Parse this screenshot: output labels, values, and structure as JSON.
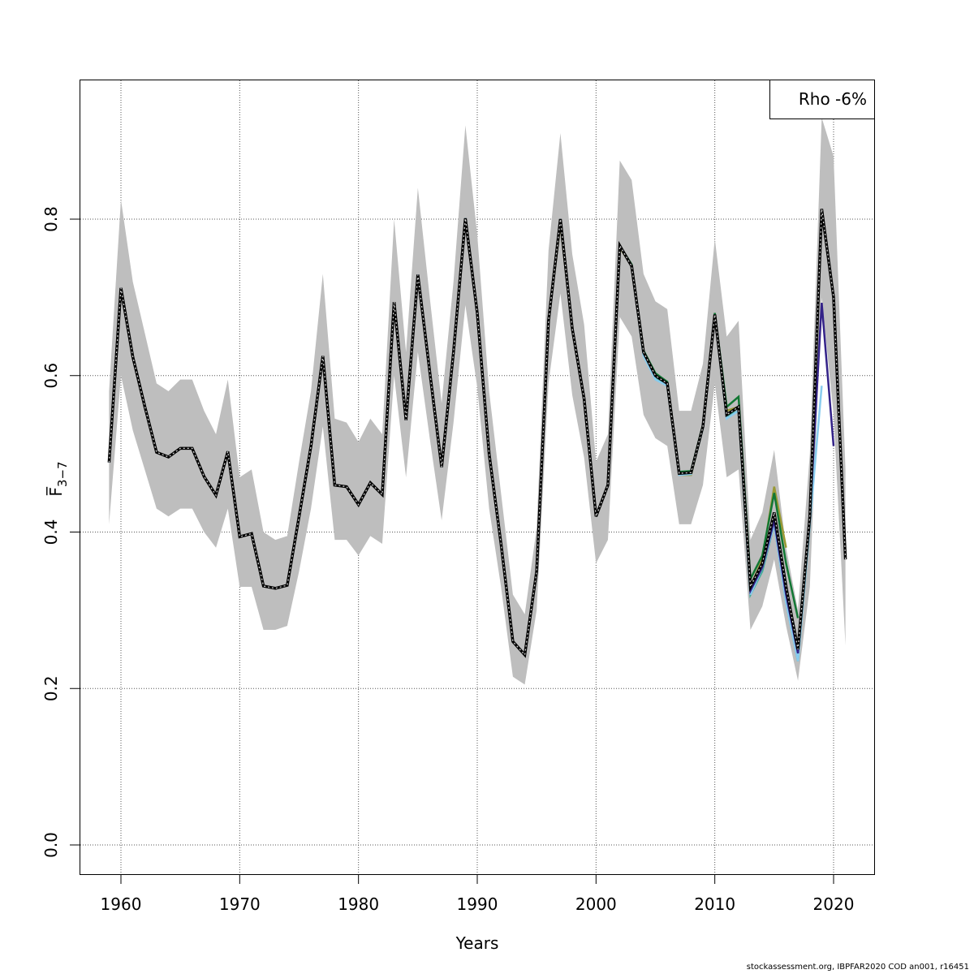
{
  "chart_data": {
    "type": "line",
    "title": "",
    "xlabel": "Years",
    "ylabel": "F̅",
    "ylabel_subscript": "3−7",
    "xlim": [
      1959,
      2021
    ],
    "ylim": [
      0.0,
      0.95
    ],
    "x_ticks": [
      "1960",
      "1970",
      "1980",
      "1990",
      "2000",
      "2010",
      "2020"
    ],
    "y_ticks": [
      "0.0",
      "0.2",
      "0.4",
      "0.6",
      "0.8"
    ],
    "grid": true,
    "legend": {
      "text": "Rho -6%",
      "placement": "top-right"
    },
    "years": [
      1959,
      1960,
      1961,
      1962,
      1963,
      1964,
      1965,
      1966,
      1967,
      1968,
      1969,
      1970,
      1971,
      1972,
      1973,
      1974,
      1975,
      1976,
      1977,
      1978,
      1979,
      1980,
      1981,
      1982,
      1983,
      1984,
      1985,
      1986,
      1987,
      1988,
      1989,
      1990,
      1991,
      1992,
      1993,
      1994,
      1995,
      1996,
      1997,
      1998,
      1999,
      2000,
      2001,
      2002,
      2003,
      2004,
      2005,
      2006,
      2007,
      2008,
      2009,
      2010,
      2011,
      2012,
      2013,
      2014,
      2015,
      2016,
      2017,
      2018,
      2019,
      2020,
      2021
    ],
    "confidence_band": {
      "color": "#bebebe",
      "lower": [
        0.41,
        0.6,
        0.53,
        0.48,
        0.43,
        0.42,
        0.43,
        0.43,
        0.4,
        0.38,
        0.43,
        0.33,
        0.33,
        0.275,
        0.275,
        0.28,
        0.35,
        0.43,
        0.535,
        0.39,
        0.39,
        0.37,
        0.395,
        0.385,
        0.6,
        0.47,
        0.63,
        0.52,
        0.415,
        0.54,
        0.69,
        0.585,
        0.43,
        0.33,
        0.215,
        0.205,
        0.3,
        0.59,
        0.705,
        0.575,
        0.495,
        0.36,
        0.39,
        0.675,
        0.65,
        0.55,
        0.52,
        0.51,
        0.41,
        0.41,
        0.46,
        0.59,
        0.47,
        0.48,
        0.275,
        0.305,
        0.365,
        0.28,
        0.21,
        0.33,
        0.7,
        0.55,
        0.255
      ],
      "upper": [
        0.58,
        0.825,
        0.72,
        0.655,
        0.59,
        0.58,
        0.595,
        0.595,
        0.555,
        0.525,
        0.595,
        0.47,
        0.48,
        0.4,
        0.39,
        0.395,
        0.49,
        0.58,
        0.73,
        0.545,
        0.54,
        0.515,
        0.545,
        0.525,
        0.8,
        0.63,
        0.84,
        0.7,
        0.565,
        0.72,
        0.92,
        0.78,
        0.58,
        0.45,
        0.32,
        0.295,
        0.405,
        0.76,
        0.91,
        0.755,
        0.665,
        0.49,
        0.525,
        0.875,
        0.85,
        0.73,
        0.695,
        0.685,
        0.555,
        0.555,
        0.615,
        0.775,
        0.65,
        0.67,
        0.39,
        0.425,
        0.505,
        0.38,
        0.3,
        0.5,
        0.93,
        0.88,
        0.48
      ]
    },
    "series": [
      {
        "color": "#000000",
        "style": "dotted-black",
        "values": [
          0.489,
          0.712,
          0.624,
          0.561,
          0.502,
          0.496,
          0.507,
          0.507,
          0.471,
          0.447,
          0.503,
          0.394,
          0.398,
          0.331,
          0.328,
          0.332,
          0.42,
          0.51,
          0.625,
          0.46,
          0.458,
          0.435,
          0.463,
          0.448,
          0.694,
          0.543,
          0.729,
          0.605,
          0.483,
          0.63,
          0.801,
          0.68,
          0.5,
          0.385,
          0.26,
          0.243,
          0.35,
          0.67,
          0.8,
          0.66,
          0.57,
          0.42,
          0.46,
          0.766,
          0.74,
          0.63,
          0.6,
          0.59,
          0.475,
          0.476,
          0.535,
          0.678,
          0.55,
          0.56,
          0.33,
          0.36,
          0.425,
          0.33,
          0.25,
          0.42,
          0.813,
          0.7,
          0.365
        ]
      },
      {
        "color": "#332288",
        "style": "solid",
        "values": [
          0.489,
          0.712,
          0.624,
          0.561,
          0.502,
          0.496,
          0.507,
          0.507,
          0.471,
          0.447,
          0.503,
          0.394,
          0.398,
          0.331,
          0.328,
          0.332,
          0.42,
          0.51,
          0.625,
          0.46,
          0.458,
          0.435,
          0.463,
          0.448,
          0.694,
          0.543,
          0.729,
          0.605,
          0.483,
          0.63,
          0.801,
          0.68,
          0.5,
          0.385,
          0.26,
          0.243,
          0.35,
          0.67,
          0.8,
          0.66,
          0.57,
          0.42,
          0.46,
          0.766,
          0.74,
          0.63,
          0.6,
          0.59,
          0.475,
          0.476,
          0.535,
          0.678,
          0.55,
          0.56,
          0.325,
          0.355,
          0.415,
          0.32,
          0.245,
          0.42,
          0.693,
          0.51
        ]
      },
      {
        "color": "#88ccee",
        "style": "solid",
        "values": [
          0.489,
          0.712,
          0.624,
          0.561,
          0.502,
          0.496,
          0.507,
          0.507,
          0.471,
          0.447,
          0.503,
          0.394,
          0.398,
          0.331,
          0.328,
          0.332,
          0.42,
          0.51,
          0.625,
          0.46,
          0.458,
          0.435,
          0.463,
          0.448,
          0.694,
          0.543,
          0.729,
          0.605,
          0.483,
          0.63,
          0.801,
          0.68,
          0.5,
          0.385,
          0.26,
          0.243,
          0.35,
          0.67,
          0.8,
          0.66,
          0.57,
          0.42,
          0.46,
          0.766,
          0.74,
          0.625,
          0.595,
          0.587,
          0.473,
          0.474,
          0.533,
          0.676,
          0.545,
          0.555,
          0.32,
          0.355,
          0.41,
          0.31,
          0.235,
          0.41,
          0.587
        ]
      },
      {
        "color": "#44aa99",
        "style": "solid",
        "values": [
          0.489,
          0.712,
          0.624,
          0.561,
          0.502,
          0.496,
          0.507,
          0.507,
          0.471,
          0.447,
          0.503,
          0.394,
          0.398,
          0.331,
          0.328,
          0.332,
          0.42,
          0.51,
          0.625,
          0.46,
          0.458,
          0.435,
          0.463,
          0.448,
          0.694,
          0.543,
          0.729,
          0.605,
          0.483,
          0.63,
          0.801,
          0.68,
          0.5,
          0.385,
          0.26,
          0.243,
          0.35,
          0.67,
          0.8,
          0.66,
          0.57,
          0.42,
          0.46,
          0.766,
          0.74,
          0.628,
          0.598,
          0.588,
          0.474,
          0.475,
          0.534,
          0.677,
          0.548,
          0.555,
          0.32,
          0.35,
          0.41,
          0.31,
          0.235,
          0.41
        ]
      },
      {
        "color": "#117733",
        "style": "solid",
        "values": [
          0.489,
          0.712,
          0.624,
          0.561,
          0.502,
          0.496,
          0.507,
          0.507,
          0.471,
          0.447,
          0.503,
          0.394,
          0.398,
          0.331,
          0.328,
          0.332,
          0.42,
          0.51,
          0.625,
          0.46,
          0.458,
          0.435,
          0.463,
          0.448,
          0.694,
          0.543,
          0.729,
          0.605,
          0.483,
          0.63,
          0.801,
          0.68,
          0.5,
          0.385,
          0.26,
          0.243,
          0.35,
          0.67,
          0.8,
          0.66,
          0.57,
          0.42,
          0.46,
          0.766,
          0.742,
          0.632,
          0.603,
          0.592,
          0.477,
          0.478,
          0.537,
          0.68,
          0.56,
          0.573,
          0.34,
          0.37,
          0.45,
          0.36,
          0.29
        ]
      },
      {
        "color": "#999933",
        "style": "solid",
        "values": [
          0.489,
          0.712,
          0.624,
          0.561,
          0.502,
          0.496,
          0.507,
          0.507,
          0.471,
          0.447,
          0.503,
          0.394,
          0.398,
          0.331,
          0.328,
          0.332,
          0.42,
          0.51,
          0.625,
          0.46,
          0.458,
          0.435,
          0.463,
          0.448,
          0.694,
          0.543,
          0.729,
          0.605,
          0.483,
          0.63,
          0.801,
          0.68,
          0.5,
          0.385,
          0.26,
          0.243,
          0.35,
          0.67,
          0.795,
          0.66,
          0.57,
          0.42,
          0.46,
          0.764,
          0.74,
          0.63,
          0.6,
          0.59,
          0.473,
          0.473,
          0.534,
          0.676,
          0.555,
          0.56,
          0.33,
          0.365,
          0.458,
          0.38
        ]
      }
    ]
  },
  "footer": "stockassessment.org, IBPFAR2020  COD  an001, r16451"
}
